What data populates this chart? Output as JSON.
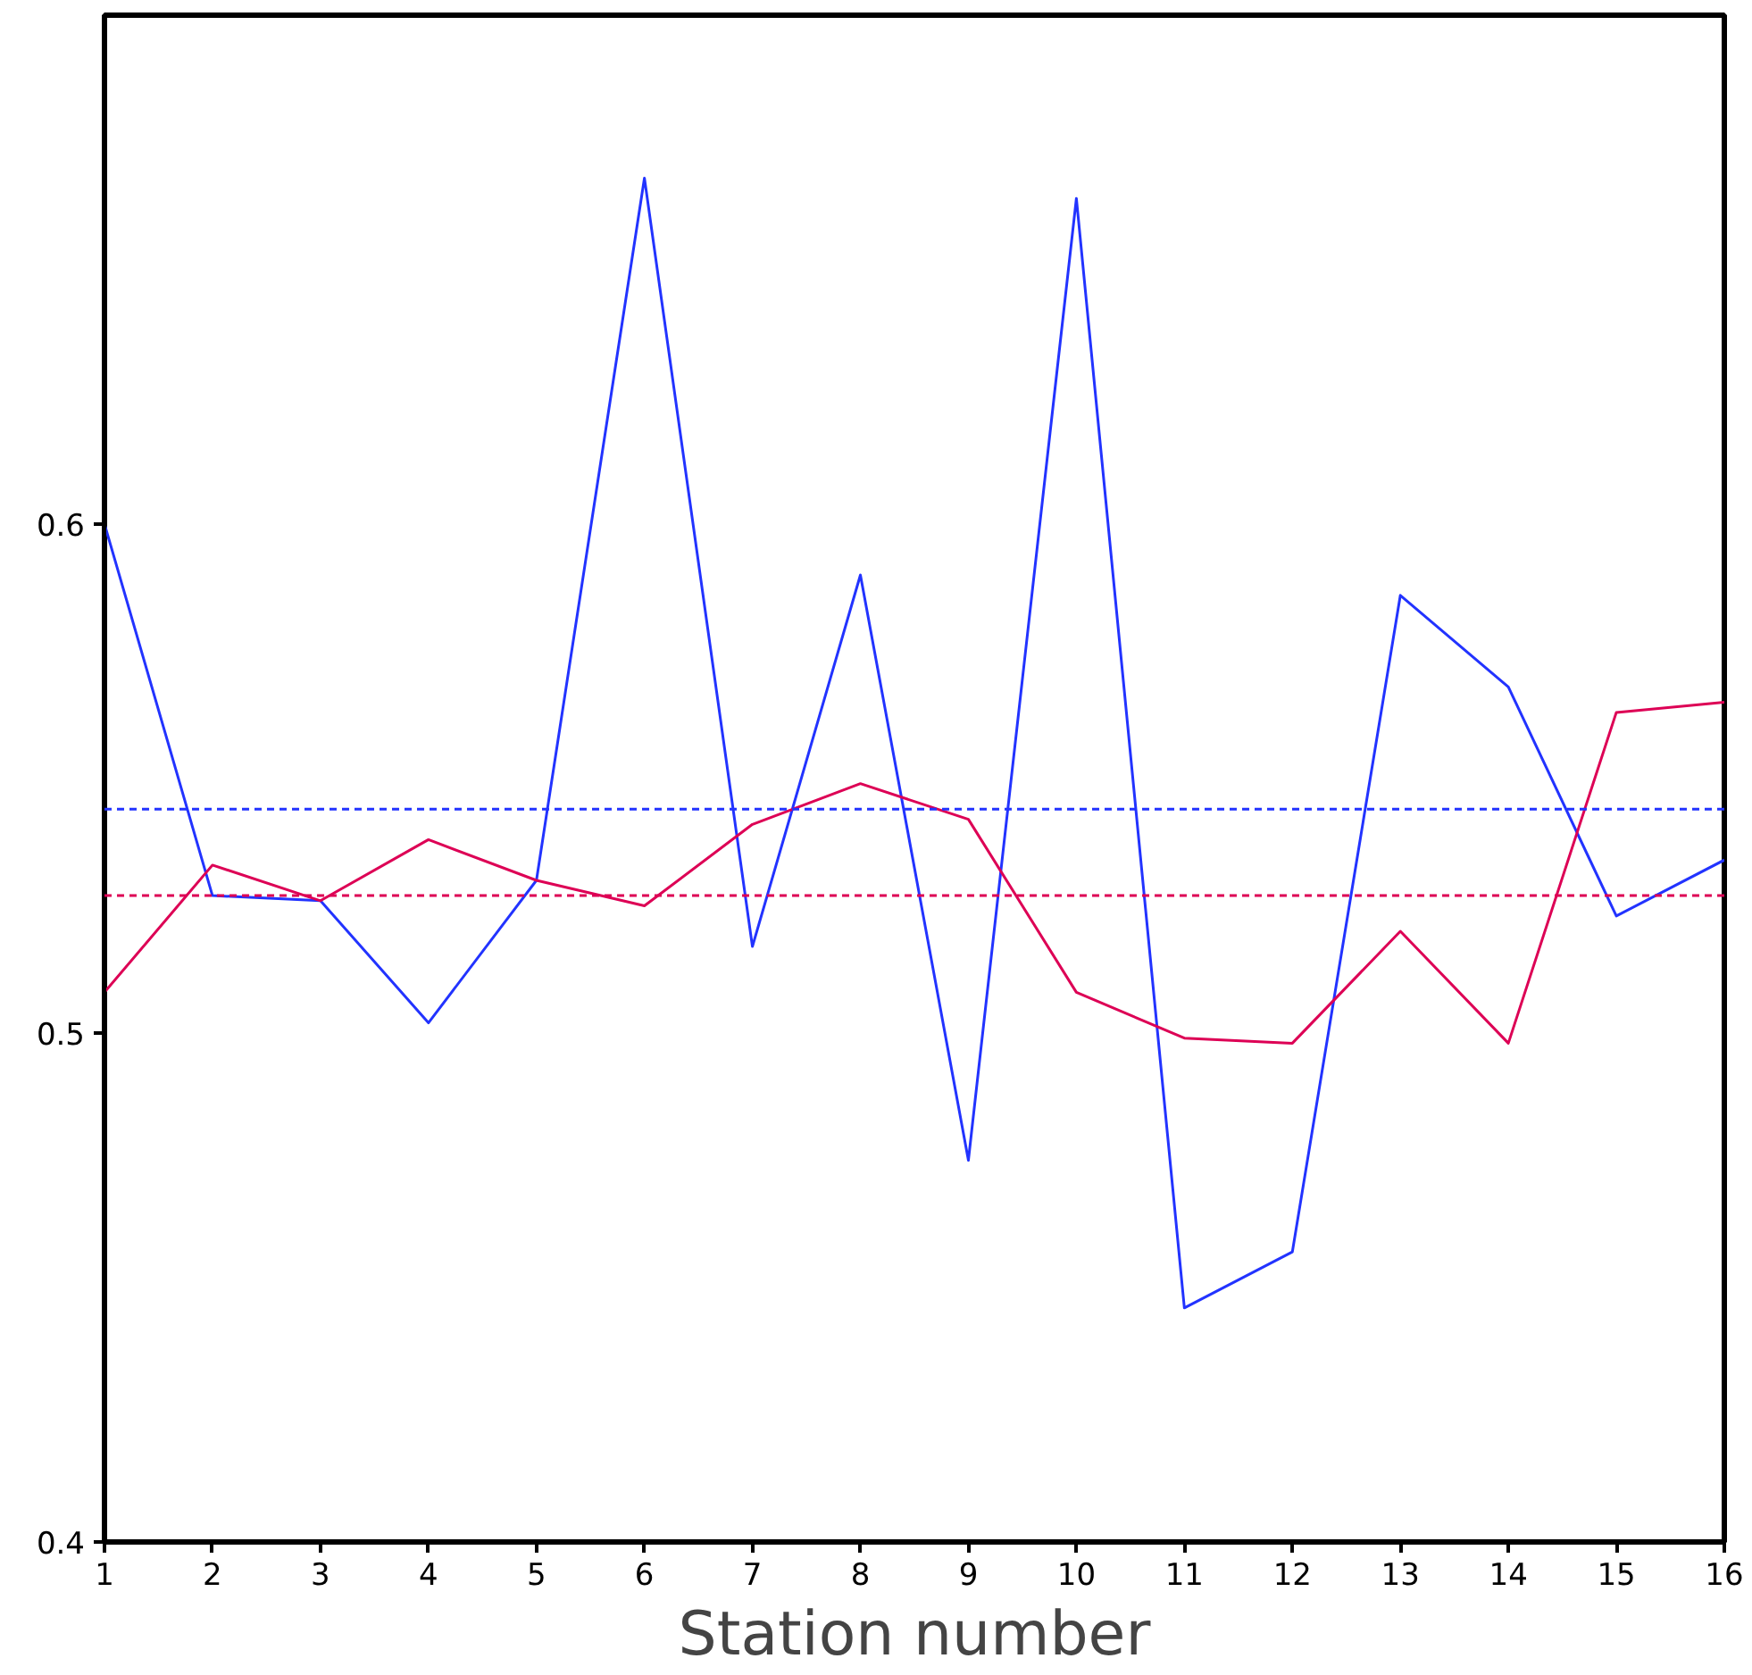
{
  "chart_data": {
    "type": "line",
    "xlabel": "Station number",
    "x": [
      1,
      2,
      3,
      4,
      5,
      6,
      7,
      8,
      9,
      10,
      11,
      12,
      13,
      14,
      15,
      16
    ],
    "series": [
      {
        "color": "#2233ff",
        "values": [
          0.6,
          0.527,
          0.526,
          0.502,
          0.53,
          0.668,
          0.517,
          0.59,
          0.475,
          0.664,
          0.446,
          0.457,
          0.586,
          0.568,
          0.523,
          0.534
        ]
      },
      {
        "color": "#dd0055",
        "values": [
          0.508,
          0.533,
          0.526,
          0.538,
          0.53,
          0.525,
          0.541,
          0.549,
          0.542,
          0.508,
          0.499,
          0.498,
          0.52,
          0.498,
          0.563,
          0.565
        ]
      }
    ],
    "ref_lines": [
      {
        "axis": "y",
        "value": 0.544,
        "color": "#2233ff",
        "line_style": "dashed"
      },
      {
        "axis": "y",
        "value": 0.527,
        "color": "#dd0055",
        "line_style": "dashed"
      }
    ],
    "xlim": [
      1,
      16
    ],
    "ylim": [
      0.4,
      0.7
    ],
    "xticks": [
      1,
      2,
      3,
      4,
      5,
      6,
      7,
      8,
      9,
      10,
      11,
      12,
      13,
      14,
      15,
      16
    ],
    "yticks": [
      0.4,
      0.5,
      0.6
    ],
    "grid": false,
    "marker": "none",
    "line_style": "solid"
  }
}
